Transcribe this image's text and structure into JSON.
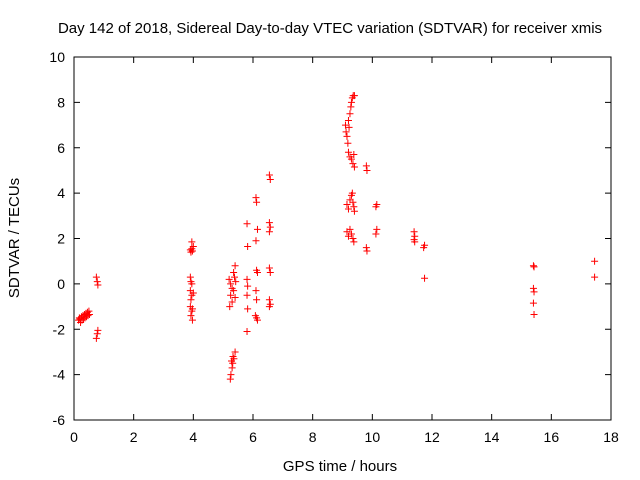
{
  "chart_data": {
    "type": "scatter",
    "title": "Day 142 of 2018, Sidereal Day-to-day VTEC variation (SDTVAR) for receiver xmis",
    "xlabel": "GPS time / hours",
    "ylabel": "SDTVAR / TECUs",
    "xlim": [
      0,
      18
    ],
    "ylim": [
      -6,
      10
    ],
    "xticks": [
      "0",
      "2",
      "4",
      "6",
      "8",
      "10",
      "12",
      "14",
      "16",
      "18"
    ],
    "yticks": [
      "-6",
      "-4",
      "-2",
      "0",
      "2",
      "4",
      "6",
      "8",
      "10"
    ],
    "grid": false,
    "marker": "+",
    "color": "#ff0000",
    "series": [
      {
        "name": "SDTVAR",
        "points": [
          [
            0.15,
            -1.6
          ],
          [
            0.18,
            -1.5
          ],
          [
            0.2,
            -1.55
          ],
          [
            0.22,
            -1.7
          ],
          [
            0.25,
            -1.45
          ],
          [
            0.27,
            -1.6
          ],
          [
            0.3,
            -1.4
          ],
          [
            0.32,
            -1.55
          ],
          [
            0.35,
            -1.35
          ],
          [
            0.37,
            -1.5
          ],
          [
            0.4,
            -1.3
          ],
          [
            0.42,
            -1.45
          ],
          [
            0.45,
            -1.25
          ],
          [
            0.47,
            -1.4
          ],
          [
            0.5,
            -1.2
          ],
          [
            0.52,
            -1.35
          ],
          [
            0.75,
            0.3
          ],
          [
            0.78,
            0.1
          ],
          [
            0.8,
            -0.05
          ],
          [
            0.8,
            -2.05
          ],
          [
            0.78,
            -2.2
          ],
          [
            0.75,
            -2.4
          ],
          [
            3.9,
            1.5
          ],
          [
            3.92,
            1.4
          ],
          [
            3.95,
            1.55
          ],
          [
            3.97,
            1.45
          ],
          [
            4.0,
            1.65
          ],
          [
            3.95,
            1.85
          ],
          [
            3.9,
            0.3
          ],
          [
            3.92,
            0.1
          ],
          [
            3.95,
            0.0
          ],
          [
            3.9,
            -0.3
          ],
          [
            3.95,
            -0.5
          ],
          [
            3.92,
            -0.7
          ],
          [
            3.9,
            -1.0
          ],
          [
            3.95,
            -1.2
          ],
          [
            3.92,
            -1.4
          ],
          [
            3.97,
            -1.6
          ],
          [
            4.0,
            -0.4
          ],
          [
            3.97,
            -1.1
          ],
          [
            5.2,
            0.2
          ],
          [
            5.25,
            0.0
          ],
          [
            5.3,
            -0.2
          ],
          [
            5.25,
            -0.5
          ],
          [
            5.3,
            -0.8
          ],
          [
            5.22,
            -1.0
          ],
          [
            5.35,
            0.5
          ],
          [
            5.4,
            0.8
          ],
          [
            5.38,
            0.3
          ],
          [
            5.42,
            0.1
          ],
          [
            5.35,
            -0.3
          ],
          [
            5.4,
            -0.6
          ],
          [
            5.28,
            -3.4
          ],
          [
            5.3,
            -3.7
          ],
          [
            5.26,
            -4.0
          ],
          [
            5.24,
            -4.2
          ],
          [
            5.33,
            -3.2
          ],
          [
            5.36,
            -3.3
          ],
          [
            5.4,
            -3.0
          ],
          [
            5.32,
            -3.5
          ],
          [
            5.8,
            2.65
          ],
          [
            5.82,
            1.65
          ],
          [
            5.8,
            0.2
          ],
          [
            5.82,
            -0.1
          ],
          [
            5.8,
            -0.5
          ],
          [
            5.82,
            -1.1
          ],
          [
            5.8,
            -2.1
          ],
          [
            6.1,
            3.8
          ],
          [
            6.12,
            3.6
          ],
          [
            6.15,
            2.4
          ],
          [
            6.1,
            1.9
          ],
          [
            6.12,
            0.6
          ],
          [
            6.15,
            0.5
          ],
          [
            6.1,
            -0.3
          ],
          [
            6.12,
            -0.7
          ],
          [
            6.08,
            -1.4
          ],
          [
            6.12,
            -1.5
          ],
          [
            6.15,
            -1.6
          ],
          [
            6.55,
            4.8
          ],
          [
            6.58,
            4.6
          ],
          [
            6.55,
            2.7
          ],
          [
            6.58,
            2.5
          ],
          [
            6.55,
            2.3
          ],
          [
            6.55,
            0.7
          ],
          [
            6.58,
            0.5
          ],
          [
            6.55,
            -0.7
          ],
          [
            6.58,
            -0.9
          ],
          [
            6.55,
            -1.0
          ],
          [
            9.1,
            7.0
          ],
          [
            9.12,
            6.7
          ],
          [
            9.15,
            6.5
          ],
          [
            9.18,
            6.2
          ],
          [
            9.2,
            7.2
          ],
          [
            9.22,
            6.9
          ],
          [
            9.25,
            7.5
          ],
          [
            9.28,
            7.8
          ],
          [
            9.3,
            8.0
          ],
          [
            9.33,
            8.2
          ],
          [
            9.36,
            8.3
          ],
          [
            9.4,
            8.3
          ],
          [
            9.2,
            5.8
          ],
          [
            9.25,
            5.6
          ],
          [
            9.3,
            5.5
          ],
          [
            9.35,
            5.3
          ],
          [
            9.4,
            5.15
          ],
          [
            9.38,
            5.7
          ],
          [
            9.15,
            3.5
          ],
          [
            9.2,
            3.3
          ],
          [
            9.25,
            3.7
          ],
          [
            9.3,
            3.9
          ],
          [
            9.33,
            4.0
          ],
          [
            9.35,
            3.6
          ],
          [
            9.38,
            3.4
          ],
          [
            9.4,
            3.2
          ],
          [
            9.15,
            2.3
          ],
          [
            9.2,
            2.1
          ],
          [
            9.25,
            2.4
          ],
          [
            9.3,
            2.2
          ],
          [
            9.35,
            2.0
          ],
          [
            9.38,
            1.85
          ],
          [
            9.8,
            5.2
          ],
          [
            9.82,
            5.0
          ],
          [
            9.8,
            1.6
          ],
          [
            9.82,
            1.45
          ],
          [
            10.15,
            3.5
          ],
          [
            10.12,
            3.4
          ],
          [
            10.15,
            2.4
          ],
          [
            10.12,
            2.2
          ],
          [
            11.4,
            2.3
          ],
          [
            11.42,
            2.1
          ],
          [
            11.4,
            1.95
          ],
          [
            11.42,
            1.85
          ],
          [
            11.75,
            1.7
          ],
          [
            11.72,
            1.6
          ],
          [
            11.75,
            0.25
          ],
          [
            15.4,
            0.8
          ],
          [
            15.42,
            0.75
          ],
          [
            15.4,
            -0.2
          ],
          [
            15.42,
            -0.35
          ],
          [
            15.4,
            -0.85
          ],
          [
            15.42,
            -1.35
          ],
          [
            17.45,
            1.0
          ],
          [
            17.45,
            0.3
          ]
        ]
      }
    ]
  }
}
